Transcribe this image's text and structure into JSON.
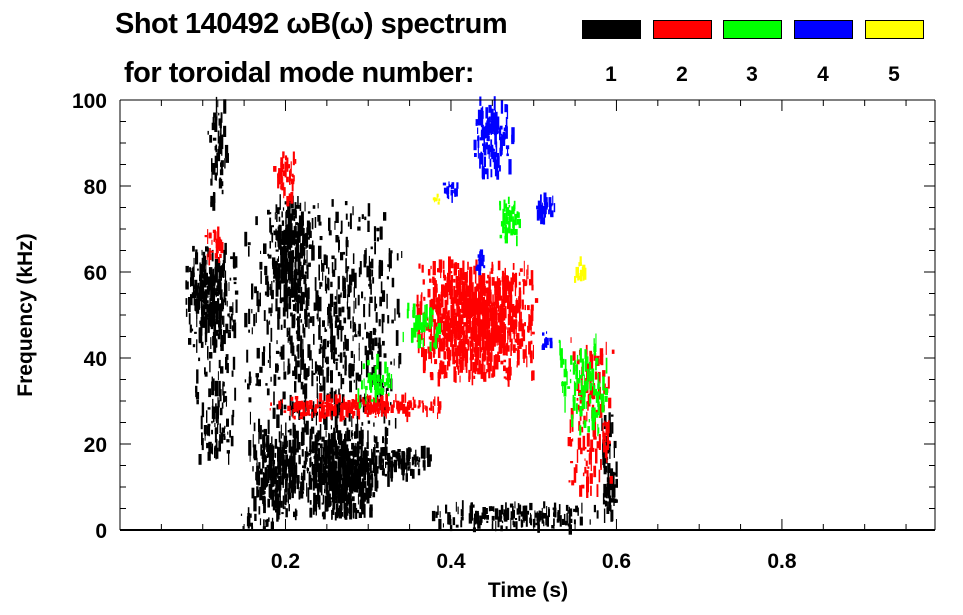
{
  "header": {
    "title_line1": "Shot 140492 ωB(ω) spectrum",
    "title_line2": "for toroidal mode number:"
  },
  "legend": [
    {
      "label": "1",
      "color": "#000000"
    },
    {
      "label": "2",
      "color": "#ff0000"
    },
    {
      "label": "3",
      "color": "#00ff00"
    },
    {
      "label": "4",
      "color": "#0000ff"
    },
    {
      "label": "5",
      "color": "#ffff00"
    }
  ],
  "chart_data": {
    "type": "heatmap",
    "title": "Shot 140492 ωB(ω) spectrum for toroidal mode number",
    "xlabel": "Time (s)",
    "ylabel": "Frequency (kHz)",
    "xlim": [
      0,
      0.985
    ],
    "ylim": [
      0,
      100
    ],
    "x_ticks": [
      {
        "v": 0.2,
        "label": "0.2"
      },
      {
        "v": 0.4,
        "label": "0.4"
      },
      {
        "v": 0.6,
        "label": "0.6"
      },
      {
        "v": 0.8,
        "label": "0.8"
      }
    ],
    "y_ticks": [
      {
        "v": 0,
        "label": "0"
      },
      {
        "v": 20,
        "label": "20"
      },
      {
        "v": 40,
        "label": "40"
      },
      {
        "v": 60,
        "label": "60"
      },
      {
        "v": 80,
        "label": "80"
      },
      {
        "v": 100,
        "label": "100"
      }
    ],
    "x_minor_step": 0.05,
    "y_minor_step": 5,
    "legend_position": "top-right",
    "features": [
      {
        "mode": 1,
        "t": [
          0.079,
          0.14
        ],
        "f": [
          42,
          66
        ],
        "density": 1.0
      },
      {
        "mode": 1,
        "t": [
          0.104,
          0.128
        ],
        "f": [
          74,
          100
        ],
        "density": 0.5
      },
      {
        "mode": 1,
        "t": [
          0.09,
          0.14
        ],
        "f": [
          15,
          45
        ],
        "density": 0.35
      },
      {
        "mode": 1,
        "t": [
          0.178,
          0.228
        ],
        "f": [
          52,
          77
        ],
        "density": 1.0
      },
      {
        "mode": 1,
        "t": [
          0.15,
          0.34
        ],
        "f": [
          10,
          78
        ],
        "density": 0.3
      },
      {
        "mode": 1,
        "t": [
          0.155,
          0.225
        ],
        "f": [
          3,
          24
        ],
        "density": 0.9
      },
      {
        "mode": 1,
        "t": [
          0.224,
          0.31
        ],
        "f": [
          3,
          23
        ],
        "density": 1.6
      },
      {
        "mode": 1,
        "t": [
          0.3,
          0.38
        ],
        "f": [
          12,
          19
        ],
        "density": 0.9
      },
      {
        "mode": 1,
        "t": [
          0.375,
          0.58
        ],
        "f": [
          0,
          6
        ],
        "density": 0.8
      },
      {
        "mode": 1,
        "t": [
          0.58,
          0.6
        ],
        "f": [
          2,
          27
        ],
        "density": 0.8
      },
      {
        "mode": 1,
        "t": [
          0.14,
          0.2
        ],
        "f": [
          0,
          5
        ],
        "density": 0.4
      },
      {
        "mode": 2,
        "t": [
          0.18,
          0.385
        ],
        "f": [
          26,
          31
        ],
        "density": 1.2
      },
      {
        "mode": 2,
        "t": [
          0.357,
          0.502
        ],
        "f": [
          35,
          62
        ],
        "density": 1.3
      },
      {
        "mode": 2,
        "t": [
          0.1,
          0.125
        ],
        "f": [
          62,
          70
        ],
        "density": 0.6
      },
      {
        "mode": 2,
        "t": [
          0.185,
          0.215
        ],
        "f": [
          76,
          88
        ],
        "density": 0.5
      },
      {
        "mode": 2,
        "t": [
          0.54,
          0.595
        ],
        "f": [
          8,
          45
        ],
        "density": 0.4
      },
      {
        "mode": 3,
        "t": [
          0.455,
          0.482
        ],
        "f": [
          66,
          77
        ],
        "density": 0.8
      },
      {
        "mode": 3,
        "t": [
          0.34,
          0.385
        ],
        "f": [
          42,
          52
        ],
        "density": 0.4
      },
      {
        "mode": 3,
        "t": [
          0.285,
          0.33
        ],
        "f": [
          28,
          40
        ],
        "density": 0.35
      },
      {
        "mode": 3,
        "t": [
          0.53,
          0.59
        ],
        "f": [
          22,
          45
        ],
        "density": 0.4
      },
      {
        "mode": 4,
        "t": [
          0.427,
          0.474
        ],
        "f": [
          82,
          100
        ],
        "density": 0.8
      },
      {
        "mode": 4,
        "t": [
          0.385,
          0.415
        ],
        "f": [
          77,
          81
        ],
        "density": 0.6
      },
      {
        "mode": 4,
        "t": [
          0.5,
          0.527
        ],
        "f": [
          71,
          78
        ],
        "density": 0.6
      },
      {
        "mode": 4,
        "t": [
          0.425,
          0.44
        ],
        "f": [
          60,
          65
        ],
        "density": 0.8
      },
      {
        "mode": 4,
        "t": [
          0.507,
          0.52
        ],
        "f": [
          42,
          46
        ],
        "density": 0.8
      },
      {
        "mode": 5,
        "t": [
          0.548,
          0.562
        ],
        "f": [
          57,
          63
        ],
        "density": 0.6
      },
      {
        "mode": 5,
        "t": [
          0.378,
          0.386
        ],
        "f": [
          76,
          78
        ],
        "density": 0.6
      }
    ]
  }
}
